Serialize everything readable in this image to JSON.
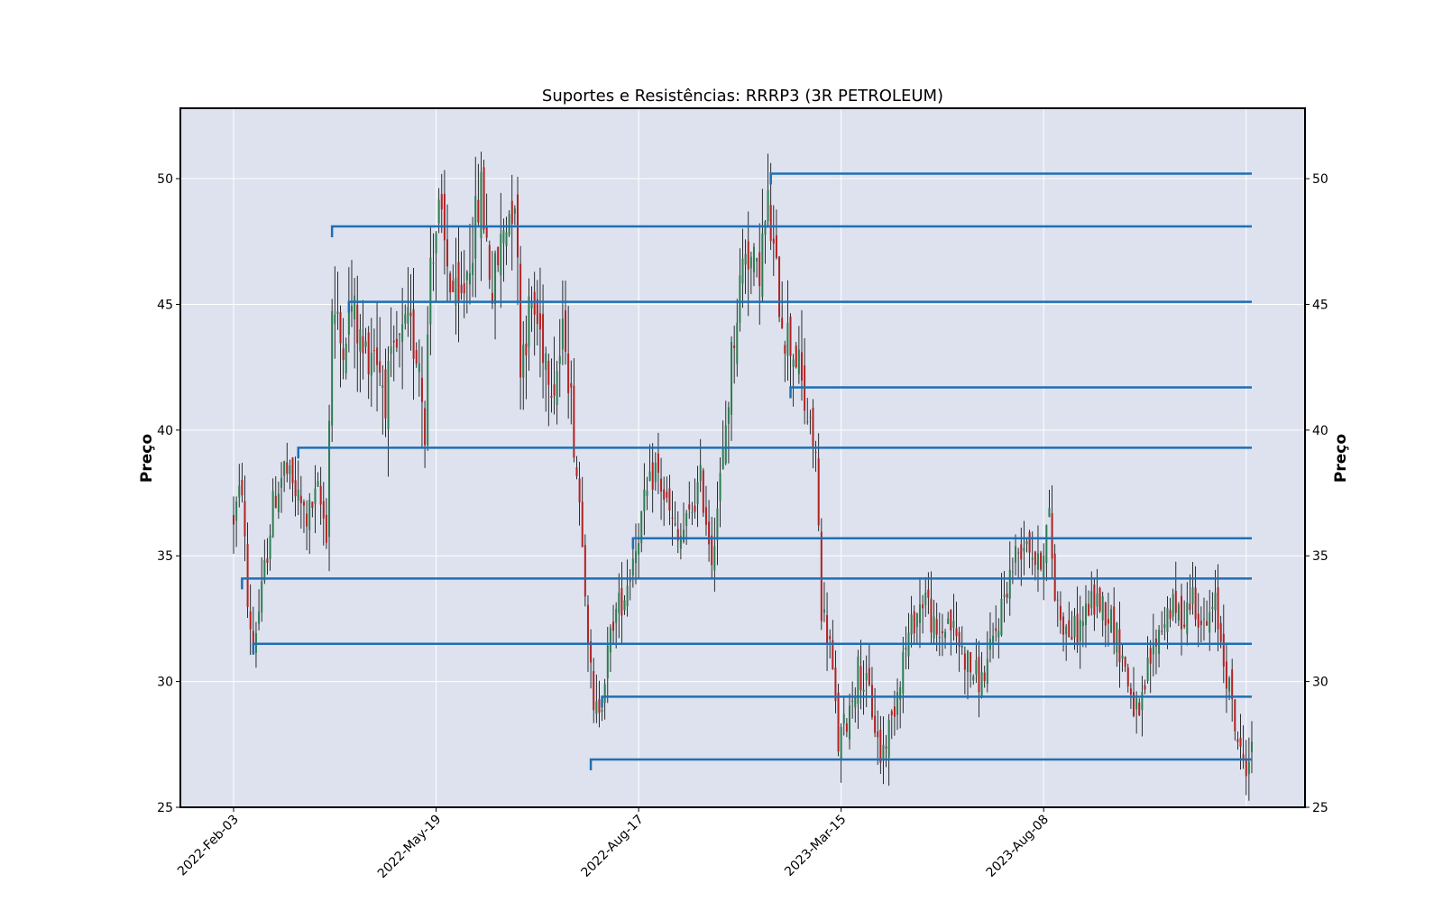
{
  "chart_data": {
    "type": "candlestick",
    "title": "Suportes e Resistências: RRRP3 (3R PETROLEUM)",
    "ylabel": "Preço",
    "ylim": [
      25,
      52.8
    ],
    "yticks": [
      25,
      30,
      35,
      40,
      45,
      50
    ],
    "xticks": [
      {
        "label": "2022-Feb-03",
        "index": 0
      },
      {
        "label": "2022-May-19",
        "index": 72
      },
      {
        "label": "2022-Aug-17",
        "index": 144
      },
      {
        "label": "2023-Mar-15",
        "index": 216
      },
      {
        "label": "2023-Aug-08",
        "index": 288
      }
    ],
    "grid": true,
    "background_color": "#dde2ee",
    "up_color": "#2e7d4f",
    "down_color": "#b22222",
    "line_color": "#1f6fb4",
    "levels": [
      {
        "price": 50.2,
        "start_index": 191
      },
      {
        "price": 48.1,
        "start_index": 35
      },
      {
        "price": 45.1,
        "start_index": 41
      },
      {
        "price": 41.7,
        "start_index": 198
      },
      {
        "price": 39.3,
        "start_index": 23
      },
      {
        "price": 35.7,
        "start_index": 142
      },
      {
        "price": 34.1,
        "start_index": 3
      },
      {
        "price": 31.5,
        "start_index": 7
      },
      {
        "price": 29.4,
        "start_index": 131
      },
      {
        "price": 26.9,
        "start_index": 127
      }
    ],
    "price_path": [
      [
        0,
        36.5
      ],
      [
        3,
        37.8
      ],
      [
        5,
        33.0
      ],
      [
        7,
        31.5
      ],
      [
        10,
        33.5
      ],
      [
        14,
        37.0
      ],
      [
        18,
        38.5
      ],
      [
        22,
        37.5
      ],
      [
        26,
        36.5
      ],
      [
        30,
        37.5
      ],
      [
        33,
        36.0
      ],
      [
        35,
        45.0
      ],
      [
        38,
        43.5
      ],
      [
        42,
        45.0
      ],
      [
        46,
        43.0
      ],
      [
        50,
        43.5
      ],
      [
        54,
        41.5
      ],
      [
        58,
        43.0
      ],
      [
        62,
        44.0
      ],
      [
        66,
        43.0
      ],
      [
        68,
        40.0
      ],
      [
        70,
        47.0
      ],
      [
        73,
        48.5
      ],
      [
        76,
        46.5
      ],
      [
        80,
        44.5
      ],
      [
        84,
        47.0
      ],
      [
        88,
        49.5
      ],
      [
        92,
        45.5
      ],
      [
        96,
        48.0
      ],
      [
        100,
        49.5
      ],
      [
        102,
        43.0
      ],
      [
        106,
        45.0
      ],
      [
        110,
        43.5
      ],
      [
        114,
        42.0
      ],
      [
        118,
        44.0
      ],
      [
        121,
        39.5
      ],
      [
        124,
        36.0
      ],
      [
        126,
        32.0
      ],
      [
        128,
        28.5
      ],
      [
        131,
        29.5
      ],
      [
        135,
        32.5
      ],
      [
        139,
        33.5
      ],
      [
        142,
        35.0
      ],
      [
        146,
        37.0
      ],
      [
        150,
        38.5
      ],
      [
        154,
        37.0
      ],
      [
        158,
        35.5
      ],
      [
        162,
        36.5
      ],
      [
        166,
        38.0
      ],
      [
        170,
        35.0
      ],
      [
        174,
        39.0
      ],
      [
        178,
        44.0
      ],
      [
        182,
        47.5
      ],
      [
        186,
        46.0
      ],
      [
        190,
        48.8
      ],
      [
        193,
        46.0
      ],
      [
        196,
        44.0
      ],
      [
        200,
        43.0
      ],
      [
        203,
        41.0
      ],
      [
        207,
        39.0
      ],
      [
        209,
        33.0
      ],
      [
        212,
        31.5
      ],
      [
        215,
        27.5
      ],
      [
        218,
        28.5
      ],
      [
        222,
        30.5
      ],
      [
        226,
        29.5
      ],
      [
        230,
        27.0
      ],
      [
        234,
        28.5
      ],
      [
        238,
        31.0
      ],
      [
        242,
        32.5
      ],
      [
        246,
        33.5
      ],
      [
        250,
        31.5
      ],
      [
        254,
        32.5
      ],
      [
        258,
        31.5
      ],
      [
        262,
        30.5
      ],
      [
        266,
        30.0
      ],
      [
        270,
        31.5
      ],
      [
        274,
        33.5
      ],
      [
        278,
        35.0
      ],
      [
        282,
        35.8
      ],
      [
        286,
        34.5
      ],
      [
        290,
        36.5
      ],
      [
        292,
        33.5
      ],
      [
        296,
        32.0
      ],
      [
        300,
        32.0
      ],
      [
        304,
        33.0
      ],
      [
        308,
        33.2
      ],
      [
        312,
        32.5
      ],
      [
        316,
        31.0
      ],
      [
        319,
        29.5
      ],
      [
        322,
        28.3
      ],
      [
        325,
        30.5
      ],
      [
        329,
        32.0
      ],
      [
        333,
        33.0
      ],
      [
        337,
        32.5
      ],
      [
        341,
        33.5
      ],
      [
        345,
        32.0
      ],
      [
        349,
        33.0
      ],
      [
        352,
        31.0
      ],
      [
        355,
        29.0
      ],
      [
        358,
        27.0
      ],
      [
        360,
        26.8
      ],
      [
        362,
        27.2
      ]
    ],
    "n_bars": 363
  }
}
